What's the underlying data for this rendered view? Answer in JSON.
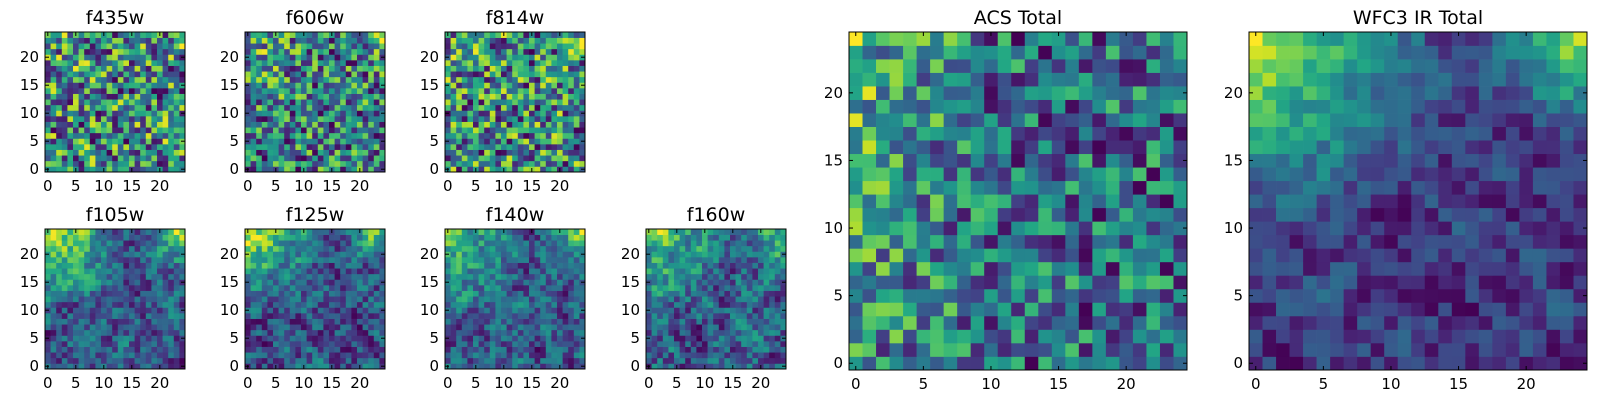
{
  "chart_data": [
    {
      "type": "heatmap",
      "title": "f435w",
      "xticks": [
        0,
        5,
        10,
        15,
        20
      ],
      "yticks": [
        0,
        5,
        10,
        15,
        20
      ],
      "xlim": [
        -0.5,
        24.5
      ],
      "ylim": [
        -0.5,
        24.5
      ],
      "size": 25,
      "seed": 11,
      "trend": 0.05,
      "trend_kind": "corner",
      "noise": 0.55,
      "smooth": 0,
      "colormap": "viridis"
    },
    {
      "type": "heatmap",
      "title": "f606w",
      "xticks": [
        0,
        5,
        10,
        15,
        20
      ],
      "yticks": [
        0,
        5,
        10,
        15,
        20
      ],
      "xlim": [
        -0.5,
        24.5
      ],
      "ylim": [
        -0.5,
        24.5
      ],
      "size": 25,
      "seed": 23,
      "trend": 0.1,
      "trend_kind": "corner",
      "noise": 0.55,
      "smooth": 0,
      "colormap": "viridis"
    },
    {
      "type": "heatmap",
      "title": "f814w",
      "xticks": [
        0,
        5,
        10,
        15,
        20
      ],
      "yticks": [
        0,
        5,
        10,
        15,
        20
      ],
      "xlim": [
        -0.5,
        24.5
      ],
      "ylim": [
        -0.5,
        24.5
      ],
      "size": 25,
      "seed": 37,
      "trend": 0.05,
      "trend_kind": "corner",
      "noise": 0.55,
      "smooth": 0,
      "colormap": "viridis"
    },
    {
      "type": "heatmap",
      "title": "f105w",
      "xticks": [
        0,
        5,
        10,
        15,
        20
      ],
      "yticks": [
        0,
        5,
        10,
        15,
        20
      ],
      "xlim": [
        -0.5,
        24.5
      ],
      "ylim": [
        -0.5,
        24.5
      ],
      "size": 25,
      "seed": 41,
      "trend": 0.35,
      "trend_kind": "corner",
      "noise": 0.45,
      "smooth": 1,
      "colormap": "viridis"
    },
    {
      "type": "heatmap",
      "title": "f125w",
      "xticks": [
        0,
        5,
        10,
        15,
        20
      ],
      "yticks": [
        0,
        5,
        10,
        15,
        20
      ],
      "xlim": [
        -0.5,
        24.5
      ],
      "ylim": [
        -0.5,
        24.5
      ],
      "size": 25,
      "seed": 53,
      "trend": 0.35,
      "trend_kind": "corner",
      "noise": 0.45,
      "smooth": 1,
      "colormap": "viridis"
    },
    {
      "type": "heatmap",
      "title": "f140w",
      "xticks": [
        0,
        5,
        10,
        15,
        20
      ],
      "yticks": [
        0,
        5,
        10,
        15,
        20
      ],
      "xlim": [
        -0.5,
        24.5
      ],
      "ylim": [
        -0.5,
        24.5
      ],
      "size": 25,
      "seed": 67,
      "trend": 0.3,
      "trend_kind": "corner",
      "noise": 0.5,
      "smooth": 1,
      "colormap": "viridis"
    },
    {
      "type": "heatmap",
      "title": "f160w",
      "xticks": [
        0,
        5,
        10,
        15,
        20
      ],
      "yticks": [
        0,
        5,
        10,
        15,
        20
      ],
      "xlim": [
        -0.5,
        24.5
      ],
      "ylim": [
        -0.5,
        24.5
      ],
      "size": 25,
      "seed": 79,
      "trend": 0.3,
      "trend_kind": "corner",
      "noise": 0.5,
      "smooth": 1,
      "colormap": "viridis"
    },
    {
      "type": "heatmap",
      "title": "ACS Total",
      "xticks": [
        0,
        5,
        10,
        15,
        20
      ],
      "yticks": [
        0,
        5,
        10,
        15,
        20
      ],
      "xlim": [
        -0.5,
        24.5
      ],
      "ylim": [
        -0.5,
        24.5
      ],
      "size": 25,
      "seed": 97,
      "trend": 0.2,
      "trend_kind": "left",
      "noise": 0.5,
      "smooth": 0,
      "colormap": "viridis"
    },
    {
      "type": "heatmap",
      "title": "WFC3 IR Total",
      "xticks": [
        0,
        5,
        10,
        15,
        20
      ],
      "yticks": [
        0,
        5,
        10,
        15,
        20
      ],
      "xlim": [
        -0.5,
        24.5
      ],
      "ylim": [
        -0.5,
        24.5
      ],
      "size": 25,
      "seed": 131,
      "trend": 0.55,
      "trend_kind": "corner",
      "noise": 0.4,
      "smooth": 1,
      "colormap": "viridis"
    }
  ]
}
